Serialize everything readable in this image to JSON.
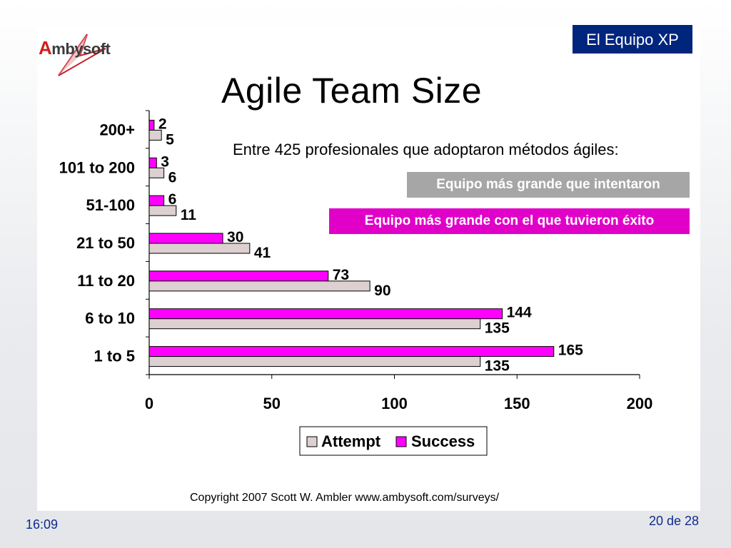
{
  "header": {
    "logo_text": "mbysoft",
    "logo_initial": "A",
    "section_label": "El Equipo XP"
  },
  "slide": {
    "title": "Agile Team Size",
    "subtitle": "Entre 425 profesionales que adoptaron métodos ágiles:",
    "label_attempt": "Equipo más grande que intentaron",
    "label_success": "Equipo más grande con el que tuvieron éxito",
    "copyright": "Copyright 2007 Scott W. Ambler www.ambysoft.com/surveys/"
  },
  "footer": {
    "time": "16:09",
    "page": "20 de 28"
  },
  "colors": {
    "success": "#ff00ff",
    "attempt": "#ddd0d0",
    "badge": "#00257d"
  },
  "chart_data": {
    "type": "bar",
    "orientation": "horizontal",
    "categories": [
      "200+",
      "101 to 200",
      "51-100",
      "21 to 50",
      "11 to 20",
      "6 to 10",
      "1 to 5"
    ],
    "series": [
      {
        "name": "Success",
        "values": [
          2,
          3,
          6,
          30,
          73,
          144,
          165
        ]
      },
      {
        "name": "Attempt",
        "values": [
          5,
          6,
          11,
          41,
          90,
          135,
          135
        ]
      }
    ],
    "xlim": [
      0,
      200
    ],
    "xticks": [
      0,
      50,
      100,
      150,
      200
    ],
    "legend": [
      "Attempt",
      "Success"
    ],
    "legend_position": "bottom",
    "grid": false
  }
}
